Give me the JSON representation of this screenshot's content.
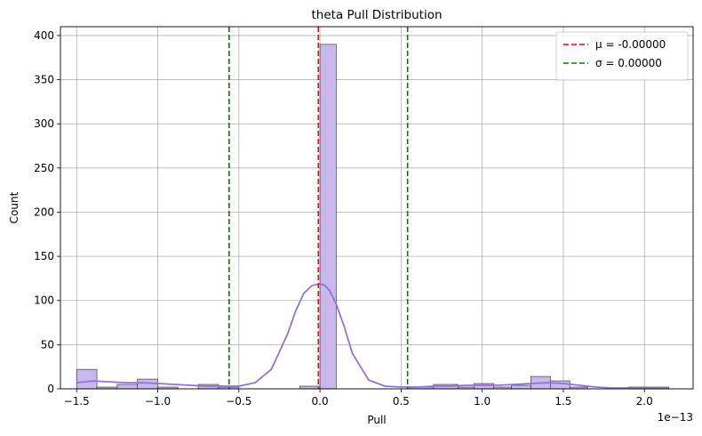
{
  "chart_data": {
    "type": "bar",
    "title": "theta Pull Distribution",
    "xlabel": "Pull",
    "ylabel": "Count",
    "x_offset_text": "1e−13",
    "xlim": [
      -1.6,
      2.3
    ],
    "ylim": [
      0,
      410
    ],
    "grid": true,
    "legend_placement": "top-right",
    "x_ticks": [
      -1.5,
      -1.0,
      -0.5,
      0.0,
      0.5,
      1.0,
      1.5,
      2.0
    ],
    "x_tick_labels": [
      "−1.5",
      "−1.0",
      "−0.5",
      "0.0",
      "0.5",
      "1.0",
      "1.5",
      "2.0"
    ],
    "y_ticks": [
      0,
      50,
      100,
      150,
      200,
      250,
      300,
      350,
      400
    ],
    "y_tick_labels": [
      "0",
      "50",
      "100",
      "150",
      "200",
      "250",
      "300",
      "350",
      "400"
    ],
    "bins": [
      {
        "x0": -1.5,
        "x1": -1.375,
        "count": 22
      },
      {
        "x0": -1.375,
        "x1": -1.25,
        "count": 2
      },
      {
        "x0": -1.25,
        "x1": -1.125,
        "count": 5
      },
      {
        "x0": -1.125,
        "x1": -1.0,
        "count": 11
      },
      {
        "x0": -1.0,
        "x1": -0.875,
        "count": 2
      },
      {
        "x0": -0.75,
        "x1": -0.625,
        "count": 5
      },
      {
        "x0": -0.625,
        "x1": -0.5,
        "count": 2
      },
      {
        "x0": -0.125,
        "x1": 0.0,
        "count": 3
      },
      {
        "x0": 0.0,
        "x1": 0.1,
        "count": 390
      },
      {
        "x0": 0.55,
        "x1": 0.7,
        "count": 2
      },
      {
        "x0": 0.7,
        "x1": 0.85,
        "count": 5
      },
      {
        "x0": 0.85,
        "x1": 0.95,
        "count": 2
      },
      {
        "x0": 0.95,
        "x1": 1.07,
        "count": 6
      },
      {
        "x0": 1.07,
        "x1": 1.18,
        "count": 2
      },
      {
        "x0": 1.18,
        "x1": 1.3,
        "count": 4
      },
      {
        "x0": 1.3,
        "x1": 1.42,
        "count": 14
      },
      {
        "x0": 1.42,
        "x1": 1.54,
        "count": 9
      },
      {
        "x0": 1.54,
        "x1": 1.65,
        "count": 2
      },
      {
        "x0": 1.9,
        "x1": 2.15,
        "count": 2
      }
    ],
    "kde": {
      "x": [
        -1.5,
        -1.4,
        -1.3,
        -1.2,
        -1.1,
        -1.0,
        -0.9,
        -0.8,
        -0.7,
        -0.6,
        -0.5,
        -0.4,
        -0.3,
        -0.2,
        -0.15,
        -0.1,
        -0.05,
        0.0,
        0.03,
        0.06,
        0.1,
        0.15,
        0.2,
        0.3,
        0.4,
        0.5,
        0.6,
        0.7,
        0.8,
        0.9,
        1.0,
        1.1,
        1.2,
        1.3,
        1.4,
        1.5,
        1.6,
        1.7,
        1.8,
        1.9,
        2.0,
        2.1,
        2.15
      ],
      "y": [
        7,
        9,
        8,
        7,
        7,
        6,
        5,
        4,
        3,
        3,
        3,
        7,
        22,
        62,
        88,
        108,
        117,
        119,
        117,
        111,
        96,
        70,
        40,
        10,
        3,
        2,
        2,
        3,
        3,
        4,
        4,
        4,
        5,
        6,
        7,
        6,
        4,
        2,
        1,
        1,
        1,
        1,
        1
      ]
    },
    "lines": [
      {
        "label": "μ = -0.00000",
        "x": -0.01,
        "color": "#ff0000"
      },
      {
        "label": "σ = 0.00000",
        "x": -0.56,
        "color": "#008000"
      },
      {
        "label": "",
        "x": 0.54,
        "color": "#008000"
      }
    ],
    "bar_fill": "#c9b8ee",
    "bar_stroke": "#3d3d3d",
    "kde_color": "#9370db"
  }
}
